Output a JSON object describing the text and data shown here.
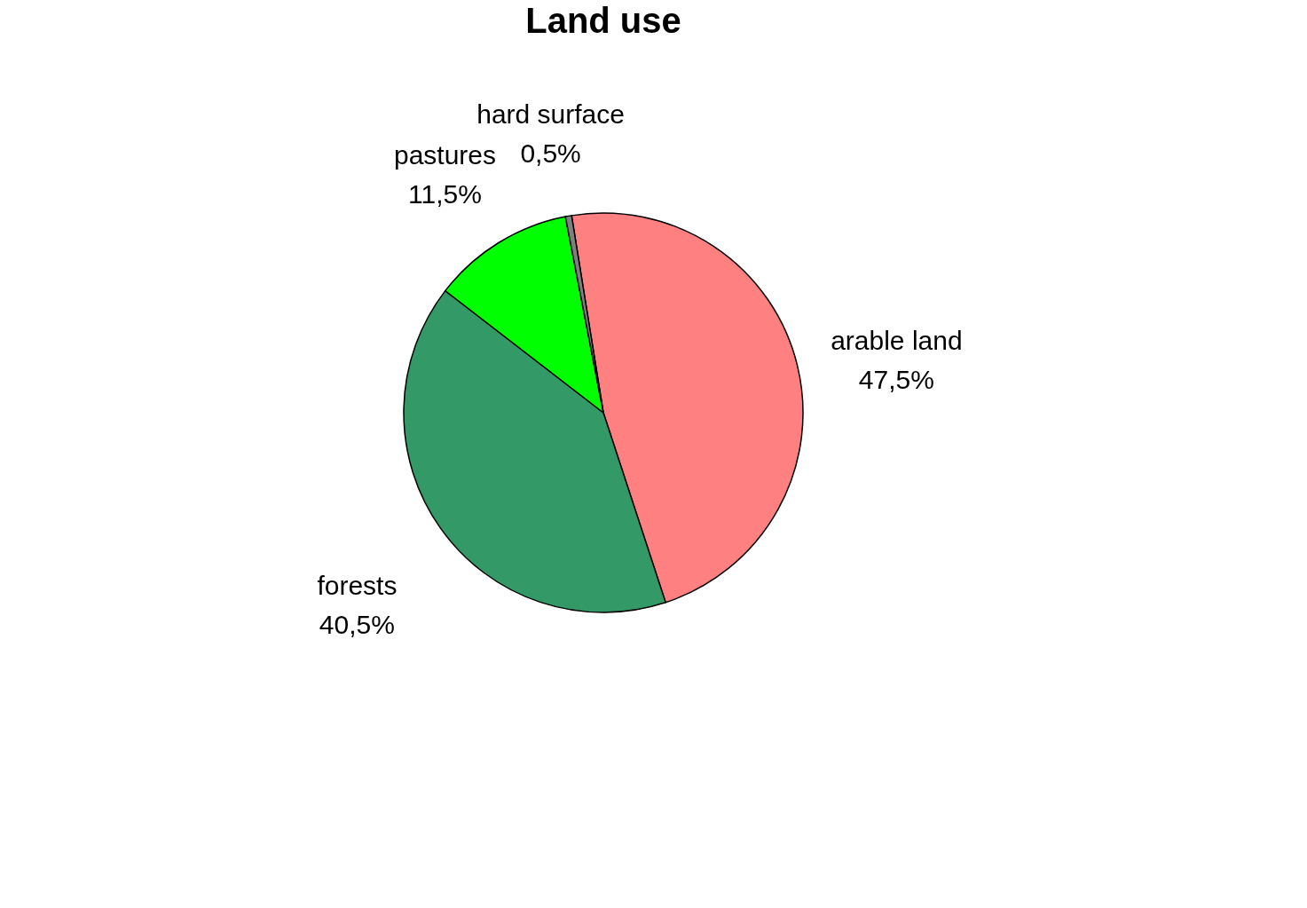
{
  "chart_data": {
    "type": "pie",
    "title": "Land use",
    "categories": [
      "arable land",
      "forests",
      "pastures",
      "hard surface"
    ],
    "values": [
      47.5,
      40.5,
      11.5,
      0.5
    ],
    "colors": [
      "#ff8080",
      "#339966",
      "#00ff00",
      "#808080"
    ],
    "value_labels": [
      "47,5%",
      "40,5%",
      "11,5%",
      "0,5%"
    ],
    "legend": false
  }
}
